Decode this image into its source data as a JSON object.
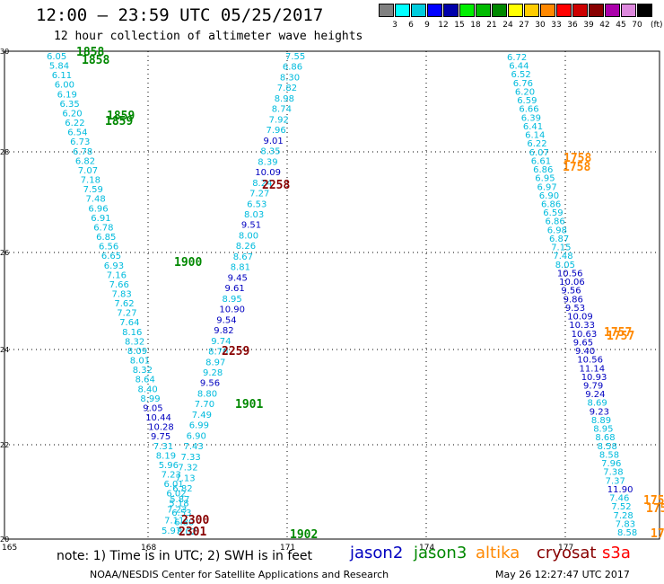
{
  "header": {
    "title": "12:00 — 23:59 UTC 05/25/2017",
    "subtitle": "12 hour collection of altimeter wave heights"
  },
  "colorbar": {
    "swatches": [
      "#808080",
      "#00ffff",
      "#00ccdd",
      "#0000ff",
      "#0000aa",
      "#00ee00",
      "#00bb00",
      "#008800",
      "#ffff00",
      "#ffcc00",
      "#ff8800",
      "#ff0000",
      "#cc0000",
      "#880000",
      "#aa00aa",
      "#dd88dd",
      "#000000"
    ],
    "ticks": [
      "3",
      "6",
      "9",
      "12",
      "15",
      "18",
      "21",
      "24",
      "27",
      "30",
      "33",
      "36",
      "39",
      "42",
      "45",
      "70"
    ],
    "unit": "(ft)"
  },
  "map": {
    "x_ticks": [
      "165",
      "168",
      "171",
      "174",
      "177"
    ],
    "y_ticks": [
      "30",
      "28",
      "26",
      "24",
      "22",
      "20"
    ]
  },
  "colors": {
    "jason2": "#0000c0",
    "jason3": "#008800",
    "altika": "#ff8800",
    "cryosat": "#880000",
    "s3a": "#ff0000",
    "light": "#00bbdd"
  },
  "map_data": {
    "tracks": [
      {
        "labels": [
          {
            "t": "6.05",
            "c": "light"
          },
          {
            "t": "5.84",
            "c": "light"
          },
          {
            "t": "6.11",
            "c": "light"
          },
          {
            "t": "6.00",
            "c": "light"
          },
          {
            "t": "6.19",
            "c": "light"
          },
          {
            "t": "6.35",
            "c": "light"
          },
          {
            "t": "6.20",
            "c": "light"
          },
          {
            "t": "6.22",
            "c": "light"
          },
          {
            "t": "6.54",
            "c": "light"
          },
          {
            "t": "6.73",
            "c": "light"
          },
          {
            "t": "6.78",
            "c": "light"
          },
          {
            "t": "6.82",
            "c": "light"
          },
          {
            "t": "7.07",
            "c": "light"
          },
          {
            "t": "7.18",
            "c": "light"
          },
          {
            "t": "7.59",
            "c": "light"
          },
          {
            "t": "7.48",
            "c": "light"
          },
          {
            "t": "6.96",
            "c": "light"
          },
          {
            "t": "6.91",
            "c": "light"
          },
          {
            "t": "6.78",
            "c": "light"
          },
          {
            "t": "6.85",
            "c": "light"
          },
          {
            "t": "6.56",
            "c": "light"
          },
          {
            "t": "6.65",
            "c": "light"
          },
          {
            "t": "6.93",
            "c": "light"
          },
          {
            "t": "7.16",
            "c": "light"
          },
          {
            "t": "7.66",
            "c": "light"
          },
          {
            "t": "7.83",
            "c": "light"
          },
          {
            "t": "7.62",
            "c": "light"
          },
          {
            "t": "7.27",
            "c": "light"
          },
          {
            "t": "7.64",
            "c": "light"
          },
          {
            "t": "8.16",
            "c": "light"
          },
          {
            "t": "8.32",
            "c": "light"
          },
          {
            "t": "8.09",
            "c": "light"
          },
          {
            "t": "8.01",
            "c": "light"
          },
          {
            "t": "8.32",
            "c": "light"
          },
          {
            "t": "8.64",
            "c": "light"
          },
          {
            "t": "8.40",
            "c": "light"
          },
          {
            "t": "8.99",
            "c": "light"
          },
          {
            "t": "9.05",
            "c": "jason2"
          },
          {
            "t": "10.44",
            "c": "jason2"
          },
          {
            "t": "10.28",
            "c": "jason2"
          },
          {
            "t": "9.75",
            "c": "jason2"
          },
          {
            "t": "7.31",
            "c": "light"
          },
          {
            "t": "8.19",
            "c": "light"
          },
          {
            "t": "5.96",
            "c": "light"
          },
          {
            "t": "7.23",
            "c": "light"
          },
          {
            "t": "6.01",
            "c": "light"
          },
          {
            "t": "6.02",
            "c": "light"
          },
          {
            "t": "5.18",
            "c": "light"
          },
          {
            "t": "6.53",
            "c": "light"
          },
          {
            "t": "6.80",
            "c": "light"
          },
          {
            "t": "8.02",
            "c": "light"
          }
        ]
      },
      {
        "labels": [
          {
            "t": "7.55",
            "c": "light"
          },
          {
            "t": "6.86",
            "c": "light"
          },
          {
            "t": "8.30",
            "c": "light"
          },
          {
            "t": "7.82",
            "c": "light"
          },
          {
            "t": "8.98",
            "c": "light"
          },
          {
            "t": "8.74",
            "c": "light"
          },
          {
            "t": "7.92",
            "c": "light"
          },
          {
            "t": "7.96",
            "c": "light"
          },
          {
            "t": "9.01",
            "c": "jason2"
          },
          {
            "t": "8.35",
            "c": "light"
          },
          {
            "t": "8.39",
            "c": "light"
          },
          {
            "t": "10.09",
            "c": "jason2"
          },
          {
            "t": "8.24",
            "c": "light"
          },
          {
            "t": "7.27",
            "c": "light"
          },
          {
            "t": "6.53",
            "c": "light"
          },
          {
            "t": "8.03",
            "c": "light"
          },
          {
            "t": "9.51",
            "c": "jason2"
          },
          {
            "t": "8.00",
            "c": "light"
          },
          {
            "t": "8.26",
            "c": "light"
          },
          {
            "t": "8.67",
            "c": "light"
          },
          {
            "t": "8.81",
            "c": "light"
          },
          {
            "t": "9.45",
            "c": "jason2"
          },
          {
            "t": "9.61",
            "c": "jason2"
          },
          {
            "t": "8.95",
            "c": "light"
          },
          {
            "t": "10.90",
            "c": "jason2"
          },
          {
            "t": "9.54",
            "c": "jason2"
          },
          {
            "t": "9.82",
            "c": "jason2"
          },
          {
            "t": "9.74",
            "c": "light"
          },
          {
            "t": "8.70",
            "c": "light"
          },
          {
            "t": "8.97",
            "c": "light"
          },
          {
            "t": "9.28",
            "c": "light"
          },
          {
            "t": "9.56",
            "c": "jason2"
          },
          {
            "t": "8.80",
            "c": "light"
          },
          {
            "t": "7.70",
            "c": "light"
          },
          {
            "t": "7.49",
            "c": "light"
          },
          {
            "t": "6.99",
            "c": "light"
          },
          {
            "t": "6.90",
            "c": "light"
          },
          {
            "t": "7.43",
            "c": "light"
          },
          {
            "t": "7.33",
            "c": "light"
          },
          {
            "t": "7.32",
            "c": "light"
          },
          {
            "t": "7.13",
            "c": "light"
          },
          {
            "t": "6.82",
            "c": "light"
          },
          {
            "t": "5.87",
            "c": "light"
          },
          {
            "t": "7.23",
            "c": "light"
          },
          {
            "t": "7.11",
            "c": "light"
          },
          {
            "t": "5.97",
            "c": "light"
          }
        ]
      },
      {
        "labels": [
          {
            "t": "6.72",
            "c": "light"
          },
          {
            "t": "6.44",
            "c": "light"
          },
          {
            "t": "6.52",
            "c": "light"
          },
          {
            "t": "6.76",
            "c": "light"
          },
          {
            "t": "6.20",
            "c": "light"
          },
          {
            "t": "6.59",
            "c": "light"
          },
          {
            "t": "6.66",
            "c": "light"
          },
          {
            "t": "6.39",
            "c": "light"
          },
          {
            "t": "6.41",
            "c": "light"
          },
          {
            "t": "6.14",
            "c": "light"
          },
          {
            "t": "6.22",
            "c": "light"
          },
          {
            "t": "6.07",
            "c": "light"
          },
          {
            "t": "6.61",
            "c": "light"
          },
          {
            "t": "6.86",
            "c": "light"
          },
          {
            "t": "6.95",
            "c": "light"
          },
          {
            "t": "6.97",
            "c": "light"
          },
          {
            "t": "6.90",
            "c": "light"
          },
          {
            "t": "6.86",
            "c": "light"
          },
          {
            "t": "6.59",
            "c": "light"
          },
          {
            "t": "6.86",
            "c": "light"
          },
          {
            "t": "6.98",
            "c": "light"
          },
          {
            "t": "6.87",
            "c": "light"
          },
          {
            "t": "7.15",
            "c": "light"
          },
          {
            "t": "7.48",
            "c": "light"
          },
          {
            "t": "8.05",
            "c": "light"
          },
          {
            "t": "10.56",
            "c": "jason2"
          },
          {
            "t": "10.06",
            "c": "jason2"
          },
          {
            "t": "9.56",
            "c": "jason2"
          },
          {
            "t": "9.86",
            "c": "jason2"
          },
          {
            "t": "9.53",
            "c": "jason2"
          },
          {
            "t": "10.09",
            "c": "jason2"
          },
          {
            "t": "10.33",
            "c": "jason2"
          },
          {
            "t": "10.63",
            "c": "jason2"
          },
          {
            "t": "9.65",
            "c": "jason2"
          },
          {
            "t": "9.40",
            "c": "jason2"
          },
          {
            "t": "10.56",
            "c": "jason2"
          },
          {
            "t": "11.14",
            "c": "jason2"
          },
          {
            "t": "10.93",
            "c": "jason2"
          },
          {
            "t": "9.79",
            "c": "jason2"
          },
          {
            "t": "9.24",
            "c": "jason2"
          },
          {
            "t": "8.69",
            "c": "light"
          },
          {
            "t": "9.23",
            "c": "jason2"
          },
          {
            "t": "8.89",
            "c": "light"
          },
          {
            "t": "8.95",
            "c": "light"
          },
          {
            "t": "8.68",
            "c": "light"
          },
          {
            "t": "8.58",
            "c": "light"
          },
          {
            "t": "8.58",
            "c": "light"
          },
          {
            "t": "7.96",
            "c": "light"
          },
          {
            "t": "7.38",
            "c": "light"
          },
          {
            "t": "7.37",
            "c": "light"
          },
          {
            "t": "11.90",
            "c": "jason2"
          },
          {
            "t": "7.46",
            "c": "light"
          },
          {
            "t": "7.52",
            "c": "light"
          },
          {
            "t": "7.28",
            "c": "light"
          },
          {
            "t": "7.83",
            "c": "light"
          },
          {
            "t": "8.58",
            "c": "light"
          }
        ]
      }
    ],
    "time_labels": [
      {
        "t": "1858",
        "c": "jason3"
      },
      {
        "t": "1858",
        "c": "jason3"
      },
      {
        "t": "1859",
        "c": "jason3"
      },
      {
        "t": "1859",
        "c": "jason3"
      },
      {
        "t": "2258",
        "c": "cryosat"
      },
      {
        "t": "1900",
        "c": "jason3"
      },
      {
        "t": "2259",
        "c": "cryosat"
      },
      {
        "t": "1901",
        "c": "jason3"
      },
      {
        "t": "2300",
        "c": "cryosat"
      },
      {
        "t": "2301",
        "c": "cryosat"
      },
      {
        "t": "1902",
        "c": "jason3"
      },
      {
        "t": "1758",
        "c": "altika"
      },
      {
        "t": "1758",
        "c": "altika"
      },
      {
        "t": "1757",
        "c": "altika"
      },
      {
        "t": "1757",
        "c": "altika"
      },
      {
        "t": "175",
        "c": "altika"
      },
      {
        "t": "175",
        "c": "altika"
      },
      {
        "t": "17",
        "c": "altika"
      }
    ]
  },
  "footer": {
    "note": "note: 1) Time is in UTC; 2) SWH is in feet",
    "legend": [
      {
        "label": "jason2",
        "c": "jason2"
      },
      {
        "label": "jason3",
        "c": "jason3"
      },
      {
        "label": "altika",
        "c": "altika"
      },
      {
        "label": "cryosat",
        "c": "cryosat"
      },
      {
        "label": "s3a",
        "c": "s3a"
      }
    ],
    "credit": "NOAA/NESDIS Center for Satellite Applications and Research",
    "timestamp": "May 26 12:27:47 UTC 2017"
  }
}
